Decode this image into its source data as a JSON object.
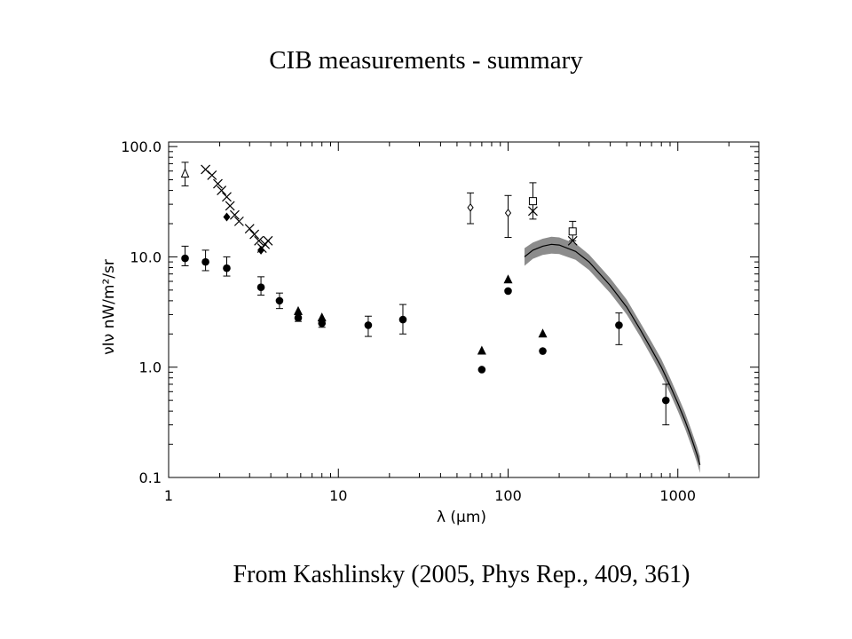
{
  "slide": {
    "title": "CIB measurements - summary",
    "citation": "From Kashlinsky (2005, Phys Rep., 409, 361)"
  },
  "chart_data": {
    "type": "scatter",
    "title": "",
    "xlabel": "λ (μm)",
    "ylabel": "νIν   nW/m²/sr",
    "xscale": "log",
    "yscale": "log",
    "xlim": [
      1,
      3000
    ],
    "ylim": [
      0.1,
      110
    ],
    "x_ticks": [
      1,
      10,
      100,
      1000
    ],
    "x_tick_labels": [
      "1",
      "10",
      "100",
      "1000"
    ],
    "y_ticks": [
      0.1,
      1.0,
      10.0,
      100.0
    ],
    "y_tick_labels": [
      "0.1",
      "1.0",
      "10.0",
      "100.0"
    ],
    "grid": false,
    "colors": {
      "marks": "#000000",
      "band": "#8c8c8c"
    },
    "series": [
      {
        "marker": "filled-circle",
        "points": [
          {
            "x": 1.25,
            "y": 9.7,
            "lo": 8.3,
            "hi": 12.5
          },
          {
            "x": 1.65,
            "y": 9.0,
            "lo": 7.5,
            "hi": 11.5
          },
          {
            "x": 2.2,
            "y": 7.9,
            "lo": 6.7,
            "hi": 10.0
          },
          {
            "x": 3.5,
            "y": 5.3,
            "lo": 4.5,
            "hi": 6.6
          },
          {
            "x": 4.5,
            "y": 4.0,
            "lo": 3.4,
            "hi": 4.7
          },
          {
            "x": 5.8,
            "y": 2.8,
            "lo": 2.6,
            "hi": 3.0
          },
          {
            "x": 8.0,
            "y": 2.5,
            "lo": 2.3,
            "hi": 2.7
          },
          {
            "x": 15,
            "y": 2.4,
            "lo": 1.9,
            "hi": 2.9
          },
          {
            "x": 24,
            "y": 2.7,
            "lo": 2.0,
            "hi": 3.7
          },
          {
            "x": 70,
            "y": 0.95
          },
          {
            "x": 100,
            "y": 4.9
          },
          {
            "x": 160,
            "y": 1.4
          },
          {
            "x": 450,
            "y": 2.4,
            "lo": 1.6,
            "hi": 3.1
          },
          {
            "x": 850,
            "y": 0.5,
            "lo": 0.3,
            "hi": 0.7
          }
        ]
      },
      {
        "marker": "filled-triangle",
        "points": [
          {
            "x": 5.8,
            "y": 3.2
          },
          {
            "x": 8.0,
            "y": 2.8
          },
          {
            "x": 70,
            "y": 1.4
          },
          {
            "x": 100,
            "y": 6.2
          },
          {
            "x": 160,
            "y": 2.0
          }
        ]
      },
      {
        "marker": "open-triangle",
        "points": [
          {
            "x": 1.25,
            "y": 57,
            "lo": 44,
            "hi": 72
          }
        ]
      },
      {
        "marker": "x",
        "points": [
          {
            "x": 1.65,
            "y": 62
          },
          {
            "x": 1.8,
            "y": 55
          },
          {
            "x": 1.95,
            "y": 46
          },
          {
            "x": 2.05,
            "y": 40
          },
          {
            "x": 2.2,
            "y": 35
          },
          {
            "x": 2.3,
            "y": 29
          },
          {
            "x": 2.45,
            "y": 24
          },
          {
            "x": 2.6,
            "y": 21
          },
          {
            "x": 3.0,
            "y": 18
          },
          {
            "x": 3.2,
            "y": 16
          },
          {
            "x": 3.4,
            "y": 14
          },
          {
            "x": 3.55,
            "y": 12
          },
          {
            "x": 3.7,
            "y": 13
          },
          {
            "x": 3.85,
            "y": 14
          },
          {
            "x": 140,
            "y": 26
          },
          {
            "x": 240,
            "y": 14
          }
        ]
      },
      {
        "marker": "filled-diamond",
        "points": [
          {
            "x": 2.2,
            "y": 23
          },
          {
            "x": 3.5,
            "y": 11.5
          }
        ]
      },
      {
        "marker": "open-diamond",
        "points": [
          {
            "x": 60,
            "y": 28,
            "lo": 20,
            "hi": 38
          },
          {
            "x": 100,
            "y": 25,
            "lo": 15,
            "hi": 36
          }
        ]
      },
      {
        "marker": "open-square",
        "points": [
          {
            "x": 140,
            "y": 32,
            "lo": 22,
            "hi": 47
          },
          {
            "x": 240,
            "y": 17,
            "lo": 14,
            "hi": 21
          }
        ]
      }
    ],
    "band": {
      "x": [
        125,
        140,
        160,
        180,
        200,
        250,
        300,
        400,
        500,
        600,
        700,
        800,
        900,
        1000,
        1100,
        1200,
        1300,
        1350
      ],
      "y": [
        10.0,
        11.5,
        12.5,
        13.0,
        12.8,
        11.2,
        9.0,
        5.5,
        3.5,
        2.2,
        1.45,
        1.0,
        0.68,
        0.47,
        0.33,
        0.23,
        0.16,
        0.13
      ],
      "lo": [
        8.3,
        9.6,
        10.4,
        10.7,
        10.6,
        9.4,
        7.6,
        4.7,
        3.0,
        1.9,
        1.25,
        0.85,
        0.58,
        0.4,
        0.28,
        0.195,
        0.135,
        0.11
      ],
      "hi": [
        12.0,
        13.5,
        14.6,
        15.2,
        15.0,
        13.2,
        10.5,
        6.4,
        4.1,
        2.55,
        1.7,
        1.18,
        0.8,
        0.55,
        0.39,
        0.27,
        0.19,
        0.155
      ]
    }
  }
}
